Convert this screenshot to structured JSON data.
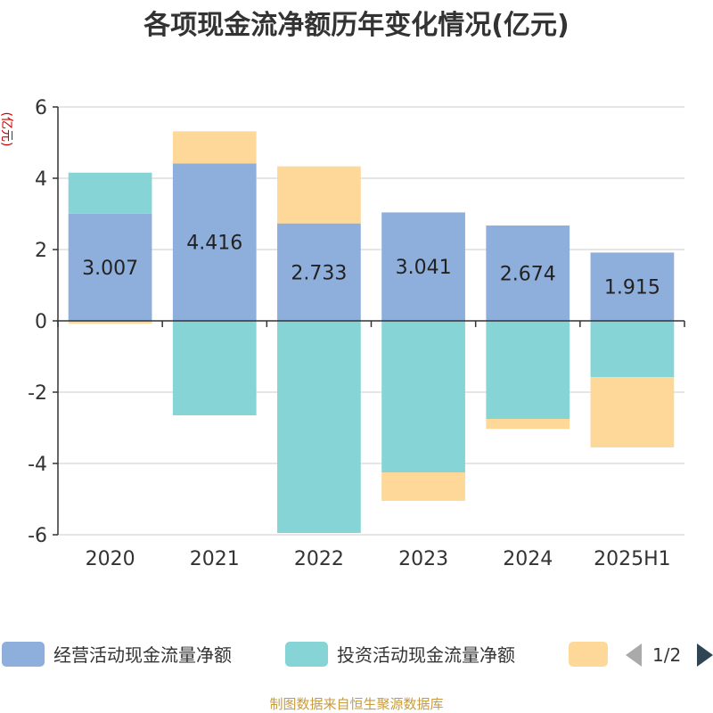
{
  "chart_data": {
    "type": "bar",
    "stacked": true,
    "title": "各项现金流净额历年变化情况(亿元)",
    "ylabel": "(亿元)",
    "categories": [
      "2020",
      "2021",
      "2022",
      "2023",
      "2024",
      "2025H1"
    ],
    "ylim": [
      -6,
      6
    ],
    "yticks": [
      -6,
      -4,
      -2,
      0,
      2,
      4,
      6
    ],
    "grid": true,
    "legend_position": "bottom",
    "series": [
      {
        "name": "经营活动现金流量净额",
        "color": "#8eaedb",
        "values": [
          3.007,
          4.416,
          2.733,
          3.041,
          2.674,
          1.915
        ],
        "labels": [
          "3.007",
          "4.416",
          "2.733",
          "3.041",
          "2.674",
          "1.915"
        ]
      },
      {
        "name": "投资活动现金流量净额",
        "color": "#86d4d6",
        "values": [
          1.15,
          -2.65,
          -5.95,
          -4.25,
          -2.75,
          -1.58
        ]
      },
      {
        "name": "",
        "color": "#fdd899",
        "values": [
          -0.08,
          0.9,
          1.6,
          -0.8,
          -0.28,
          -1.97
        ]
      }
    ]
  },
  "legend": {
    "pager": "1/2"
  },
  "footer": {
    "source": "制图数据来自恒生聚源数据库"
  }
}
